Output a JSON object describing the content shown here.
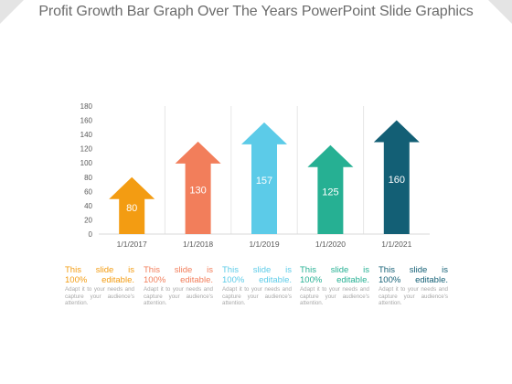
{
  "slide": {
    "title": "Profit Growth Bar Graph Over The Years PowerPoint Slide Graphics"
  },
  "chart_data": {
    "type": "bar",
    "categories": [
      "1/1/2017",
      "1/1/2018",
      "1/1/2019",
      "1/1/2020",
      "1/1/2021"
    ],
    "values": [
      80,
      130,
      157,
      125,
      160
    ],
    "data_labels": [
      "80",
      "130",
      "157",
      "125",
      "160"
    ],
    "colors": [
      "#f39c12",
      "#f27e5b",
      "#5ccbe8",
      "#26b093",
      "#135f75"
    ],
    "yticks": [
      0,
      20,
      40,
      60,
      80,
      100,
      120,
      140,
      160,
      180
    ],
    "ylim": [
      0,
      180
    ],
    "bar_style": "upward arrows",
    "grid": "vertical separators between categories",
    "xlabel": "",
    "ylabel": ""
  },
  "captions": [
    {
      "head": "This slide is 100% editable.",
      "body": "Adapt it to your needs and capture your audience's attention.",
      "color": "#f39c12"
    },
    {
      "head": "This slide is 100% editable.",
      "body": "Adapt it to your needs and capture your audience's attention.",
      "color": "#f27e5b"
    },
    {
      "head": "This slide is 100% editable.",
      "body": "Adapt it to your needs and capture your audience's attention.",
      "color": "#5ccbe8"
    },
    {
      "head": "This slide is 100% editable.",
      "body": "Adapt it to your needs and capture your audience's attention.",
      "color": "#26b093"
    },
    {
      "head": "This slide is 100% editable.",
      "body": "Adapt it to your needs and capture your audience's attention.",
      "color": "#135f75"
    }
  ]
}
